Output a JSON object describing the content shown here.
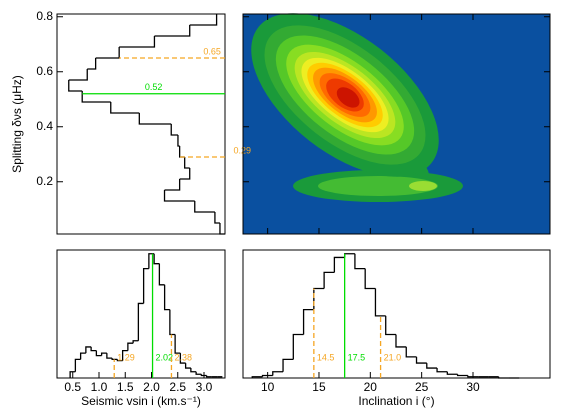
{
  "chart_data": [
    {
      "type": "histogram",
      "orientation": "horizontal",
      "ylabel": "Splitting δνs (μHz)",
      "bins": [
        0.01,
        0.05,
        0.09,
        0.13,
        0.17,
        0.21,
        0.25,
        0.29,
        0.33,
        0.37,
        0.41,
        0.45,
        0.49,
        0.53,
        0.57,
        0.61,
        0.65,
        0.69,
        0.73,
        0.77,
        0.81
      ],
      "counts": [
        0.03,
        0.06,
        0.18,
        0.36,
        0.27,
        0.21,
        0.24,
        0.27,
        0.28,
        0.32,
        0.51,
        0.68,
        0.85,
        0.93,
        0.82,
        0.77,
        0.63,
        0.42,
        0.21,
        0.05
      ],
      "xlim": [
        1,
        0
      ],
      "ylim": [
        0.01,
        0.81
      ],
      "yticks": [
        0.2,
        0.4,
        0.6,
        0.8
      ],
      "median": 0.52,
      "interval": [
        0.29,
        0.65
      ],
      "color": "#000000",
      "median_color": "#00dd00",
      "interval_color": "#f5a623"
    },
    {
      "type": "contour",
      "xlim": [
        7.6,
        37.5
      ],
      "ylim": [
        0.01,
        0.81
      ],
      "xticks": [
        10,
        15,
        20,
        25,
        30
      ],
      "yticks": [
        0.2,
        0.4,
        0.6,
        0.8
      ],
      "background": "#0a50a0"
    },
    {
      "type": "histogram",
      "orientation": "vertical",
      "xlabel": "Seismic vsin i (km.s⁻¹)",
      "bins": [
        0.45,
        0.55,
        0.65,
        0.75,
        0.85,
        0.95,
        1.05,
        1.15,
        1.25,
        1.35,
        1.45,
        1.55,
        1.65,
        1.75,
        1.85,
        1.95,
        2.05,
        2.15,
        2.25,
        2.35,
        2.45,
        2.55,
        2.65,
        2.75,
        2.85,
        2.95,
        3.05,
        3.15,
        3.25,
        3.35
      ],
      "counts": [
        0.05,
        0.15,
        0.2,
        0.25,
        0.22,
        0.18,
        0.2,
        0.16,
        0.15,
        0.14,
        0.22,
        0.28,
        0.3,
        0.6,
        0.88,
        1.0,
        0.92,
        0.75,
        0.55,
        0.35,
        0.2,
        0.12,
        0.08,
        0.05,
        0.03,
        0.02,
        0.01,
        0.01,
        0.01
      ],
      "xlim": [
        0.2,
        3.4
      ],
      "ylim": [
        0,
        1.03
      ],
      "xticks": [
        0.5,
        {
          "value": 1.0,
          "label": "1.0"
        },
        1.5,
        {
          "value": 2.0,
          "label": "2.0"
        },
        2.5,
        {
          "value": 3.0,
          "label": "3.0"
        }
      ],
      "median": 2.02,
      "interval": [
        1.29,
        2.38
      ],
      "color": "#000000",
      "median_color": "#00dd00",
      "interval_color": "#f5a623"
    },
    {
      "type": "histogram",
      "orientation": "vertical",
      "xlabel": "Inclination i (°)",
      "bins": [
        8.5,
        9.5,
        10.5,
        11.5,
        12.5,
        13.5,
        14.5,
        15.5,
        16.5,
        17.5,
        18.5,
        19.5,
        20.5,
        21.5,
        22.5,
        23.5,
        24.5,
        25.5,
        26.5,
        27.5,
        28.5,
        29.5,
        30.5,
        31.5,
        32.5,
        33.5,
        34.5
      ],
      "counts": [
        0.01,
        0.02,
        0.05,
        0.15,
        0.35,
        0.55,
        0.72,
        0.85,
        0.97,
        1.0,
        0.88,
        0.72,
        0.5,
        0.35,
        0.25,
        0.17,
        0.12,
        0.08,
        0.05,
        0.03,
        0.02,
        0.01,
        0.01,
        0.01,
        0,
        0
      ],
      "xlim": [
        7.6,
        37.5
      ],
      "ylim": [
        0,
        1.03
      ],
      "xticks": [
        10,
        15,
        20,
        25,
        30
      ],
      "median": 17.5,
      "interval": [
        14.5,
        {
          "value": 21.0,
          "label": "21.0"
        }
      ],
      "color": "#000000",
      "median_color": "#00dd00",
      "interval_color": "#f5a623"
    }
  ]
}
